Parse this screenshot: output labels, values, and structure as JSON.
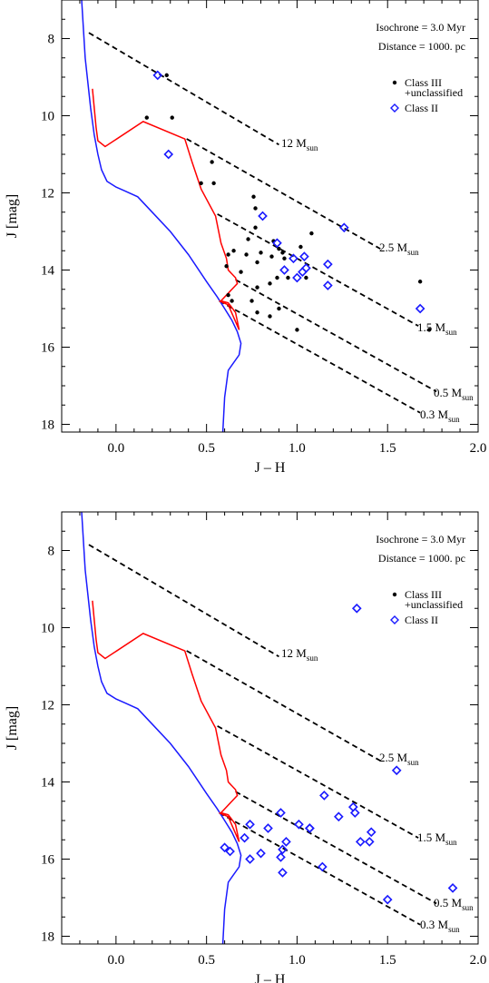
{
  "charts": [
    {
      "panel": "top",
      "annotations": {
        "isochrone": "Isochrone = 3.0 Myr",
        "distance": "Distance = 1000. pc"
      },
      "legend": {
        "class3_line1": "Class III",
        "class3_line2": "+unclassified",
        "class2": "Class II"
      },
      "xlabel": "J – H",
      "ylabel": "J [mag]",
      "mass_labels": [
        {
          "num": "12 M",
          "sub": "sun"
        },
        {
          "num": "2.5 M",
          "sub": "sun"
        },
        {
          "num": "1.5 M",
          "sub": "sun"
        },
        {
          "num": "0.5 M",
          "sub": "sun"
        },
        {
          "num": "0.3 M",
          "sub": "sun"
        }
      ]
    },
    {
      "panel": "bottom",
      "annotations": {
        "isochrone": "Isochrone = 3.0 Myr",
        "distance": "Distance = 1000. pc"
      },
      "legend": {
        "class3_line1": "Class III",
        "class3_line2": "+unclassified",
        "class2": "Class II"
      },
      "xlabel": "J – H",
      "ylabel": "J [mag]",
      "mass_labels": [
        {
          "num": "12 M",
          "sub": "sun"
        },
        {
          "num": "2.5 M",
          "sub": "sun"
        },
        {
          "num": "1.5 M",
          "sub": "sun"
        },
        {
          "num": "0.5 M",
          "sub": "sun"
        },
        {
          "num": "0.3 M",
          "sub": "sun"
        }
      ]
    }
  ],
  "chart_data": [
    {
      "type": "scatter",
      "xlabel": "J – H",
      "ylabel": "J [mag]",
      "xlim": [
        -0.3,
        2.0
      ],
      "ylim": [
        18.2,
        7.0
      ],
      "y_inverted": true,
      "xticks": [
        "0.0",
        "0.5",
        "1.0",
        "1.5",
        "2.0"
      ],
      "yticks": [
        "8",
        "10",
        "12",
        "14",
        "16",
        "18"
      ],
      "colors": {
        "blue_isochrone": "#1a1aff",
        "red_isochrone": "#ff0000",
        "class2": "#1a1aff",
        "class3": "#000000"
      },
      "isochrone_blue": [
        [
          -0.19,
          7.0
        ],
        [
          -0.17,
          8.5
        ],
        [
          -0.14,
          9.8
        ],
        [
          -0.12,
          10.5
        ],
        [
          -0.1,
          11.0
        ],
        [
          -0.08,
          11.4
        ],
        [
          -0.05,
          11.7
        ],
        [
          0.0,
          11.85
        ],
        [
          0.05,
          11.95
        ],
        [
          0.12,
          12.1
        ],
        [
          0.2,
          12.5
        ],
        [
          0.3,
          13.0
        ],
        [
          0.4,
          13.6
        ],
        [
          0.5,
          14.3
        ],
        [
          0.56,
          14.7
        ],
        [
          0.6,
          15.0
        ],
        [
          0.64,
          15.3
        ],
        [
          0.67,
          15.6
        ],
        [
          0.69,
          15.9
        ],
        [
          0.68,
          16.2
        ],
        [
          0.62,
          16.6
        ],
        [
          0.6,
          17.3
        ],
        [
          0.59,
          18.2
        ]
      ],
      "isochrone_red": [
        [
          -0.13,
          9.3
        ],
        [
          -0.11,
          10.3
        ],
        [
          -0.1,
          10.65
        ],
        [
          -0.06,
          10.8
        ],
        [
          0.15,
          10.15
        ],
        [
          0.38,
          10.6
        ],
        [
          0.42,
          11.2
        ],
        [
          0.47,
          11.9
        ],
        [
          0.55,
          12.6
        ],
        [
          0.58,
          13.3
        ],
        [
          0.61,
          13.7
        ],
        [
          0.62,
          14.0
        ],
        [
          0.66,
          14.2
        ],
        [
          0.67,
          14.35
        ],
        [
          0.58,
          14.8
        ],
        [
          0.62,
          14.85
        ],
        [
          0.66,
          15.1
        ],
        [
          0.68,
          15.55
        ],
        [
          0.62,
          14.9
        ],
        [
          0.57,
          14.8
        ]
      ],
      "mass_tracks": [
        {
          "label": "12 Msun",
          "x": [
            -0.15,
            0.9
          ],
          "y": [
            7.85,
            10.75
          ]
        },
        {
          "label": "2.5 Msun",
          "x": [
            0.39,
            1.46
          ],
          "y": [
            10.6,
            13.45
          ]
        },
        {
          "label": "1.5 Msun",
          "x": [
            0.56,
            1.67
          ],
          "y": [
            12.55,
            15.45
          ]
        },
        {
          "label": "0.5 Msun",
          "x": [
            0.66,
            1.77
          ],
          "y": [
            14.25,
            17.15
          ]
        },
        {
          "label": "0.3 Msun",
          "x": [
            0.57,
            1.68
          ],
          "y": [
            14.8,
            17.7
          ]
        }
      ],
      "series": [
        {
          "name": "Class III +unclassified",
          "marker": "dot",
          "x": [
            0.28,
            0.17,
            0.31,
            0.53,
            0.47,
            0.54,
            0.76,
            0.77,
            0.77,
            0.73,
            0.87,
            0.9,
            0.8,
            0.92,
            1.02,
            1.08,
            0.65,
            0.72,
            0.62,
            0.61,
            0.69,
            0.78,
            0.86,
            0.93,
            0.89,
            0.95,
            1.05,
            0.85,
            0.78,
            0.75,
            0.9,
            0.78,
            0.85,
            1.0,
            0.64,
            0.62,
            1.68,
            1.73
          ],
          "y": [
            8.95,
            10.05,
            10.05,
            11.2,
            11.75,
            11.75,
            12.1,
            12.4,
            12.9,
            13.2,
            13.25,
            13.45,
            13.55,
            13.55,
            13.4,
            13.05,
            13.5,
            13.6,
            13.6,
            13.9,
            14.05,
            13.8,
            13.65,
            13.7,
            14.2,
            14.2,
            14.2,
            14.35,
            14.45,
            14.8,
            15.0,
            15.1,
            15.2,
            15.55,
            14.8,
            14.65,
            14.3,
            15.55
          ]
        },
        {
          "name": "Class II",
          "marker": "diamond",
          "x": [
            0.23,
            0.29,
            0.81,
            1.26,
            0.89,
            0.93,
            0.98,
            1.04,
            1.05,
            1.03,
            1.0,
            1.17,
            1.17,
            1.68
          ],
          "y": [
            8.95,
            11.0,
            12.6,
            12.9,
            13.3,
            14.0,
            13.7,
            13.65,
            13.95,
            14.05,
            14.2,
            13.85,
            14.4,
            15.0
          ]
        }
      ]
    },
    {
      "type": "scatter",
      "xlabel": "J – H",
      "ylabel": "J [mag]",
      "xlim": [
        -0.3,
        2.0
      ],
      "ylim": [
        18.2,
        7.0
      ],
      "y_inverted": true,
      "xticks": [
        "0.0",
        "0.5",
        "1.0",
        "1.5",
        "2.0"
      ],
      "yticks": [
        "8",
        "10",
        "12",
        "14",
        "16",
        "18"
      ],
      "colors": {
        "blue_isochrone": "#1a1aff",
        "red_isochrone": "#ff0000",
        "class2": "#1a1aff",
        "class3": "#000000"
      },
      "isochrone_blue": [
        [
          -0.19,
          7.0
        ],
        [
          -0.17,
          8.5
        ],
        [
          -0.14,
          9.8
        ],
        [
          -0.12,
          10.5
        ],
        [
          -0.1,
          11.0
        ],
        [
          -0.08,
          11.4
        ],
        [
          -0.05,
          11.7
        ],
        [
          0.0,
          11.85
        ],
        [
          0.05,
          11.95
        ],
        [
          0.12,
          12.1
        ],
        [
          0.2,
          12.5
        ],
        [
          0.3,
          13.0
        ],
        [
          0.4,
          13.6
        ],
        [
          0.5,
          14.3
        ],
        [
          0.56,
          14.7
        ],
        [
          0.6,
          15.0
        ],
        [
          0.64,
          15.3
        ],
        [
          0.67,
          15.6
        ],
        [
          0.69,
          15.9
        ],
        [
          0.68,
          16.2
        ],
        [
          0.62,
          16.6
        ],
        [
          0.6,
          17.3
        ],
        [
          0.59,
          18.2
        ]
      ],
      "isochrone_red": [
        [
          -0.13,
          9.3
        ],
        [
          -0.11,
          10.3
        ],
        [
          -0.1,
          10.65
        ],
        [
          -0.06,
          10.8
        ],
        [
          0.15,
          10.15
        ],
        [
          0.38,
          10.6
        ],
        [
          0.42,
          11.2
        ],
        [
          0.47,
          11.9
        ],
        [
          0.55,
          12.6
        ],
        [
          0.58,
          13.3
        ],
        [
          0.61,
          13.7
        ],
        [
          0.62,
          14.0
        ],
        [
          0.66,
          14.2
        ],
        [
          0.67,
          14.35
        ],
        [
          0.58,
          14.8
        ],
        [
          0.62,
          14.85
        ],
        [
          0.66,
          15.1
        ],
        [
          0.68,
          15.55
        ],
        [
          0.62,
          14.9
        ],
        [
          0.57,
          14.8
        ]
      ],
      "mass_tracks": [
        {
          "label": "12 Msun",
          "x": [
            -0.15,
            0.9
          ],
          "y": [
            7.85,
            10.75
          ]
        },
        {
          "label": "2.5 Msun",
          "x": [
            0.39,
            1.46
          ],
          "y": [
            10.6,
            13.45
          ]
        },
        {
          "label": "1.5 Msun",
          "x": [
            0.56,
            1.67
          ],
          "y": [
            12.55,
            15.45
          ]
        },
        {
          "label": "0.5 Msun",
          "x": [
            0.66,
            1.77
          ],
          "y": [
            14.25,
            17.15
          ]
        },
        {
          "label": "0.3 Msun",
          "x": [
            0.57,
            1.68
          ],
          "y": [
            14.8,
            17.7
          ]
        }
      ],
      "series": [
        {
          "name": "Class III +unclassified",
          "marker": "dot",
          "x": [],
          "y": []
        },
        {
          "name": "Class II",
          "marker": "diamond",
          "x": [
            1.33,
            1.55,
            1.15,
            1.31,
            1.32,
            1.23,
            1.41,
            1.35,
            1.4,
            1.86,
            1.5,
            0.91,
            0.84,
            0.74,
            0.71,
            0.94,
            1.01,
            1.07,
            1.07,
            0.92,
            0.91,
            0.8,
            0.6,
            0.63,
            0.74,
            0.92,
            1.14
          ],
          "y": [
            9.5,
            13.7,
            14.35,
            14.65,
            14.8,
            14.9,
            15.3,
            15.55,
            15.55,
            16.75,
            17.05,
            14.8,
            15.2,
            15.1,
            15.45,
            15.55,
            15.1,
            15.2,
            15.2,
            15.75,
            15.95,
            15.85,
            15.7,
            15.8,
            16.0,
            16.35,
            16.2
          ]
        }
      ]
    }
  ]
}
